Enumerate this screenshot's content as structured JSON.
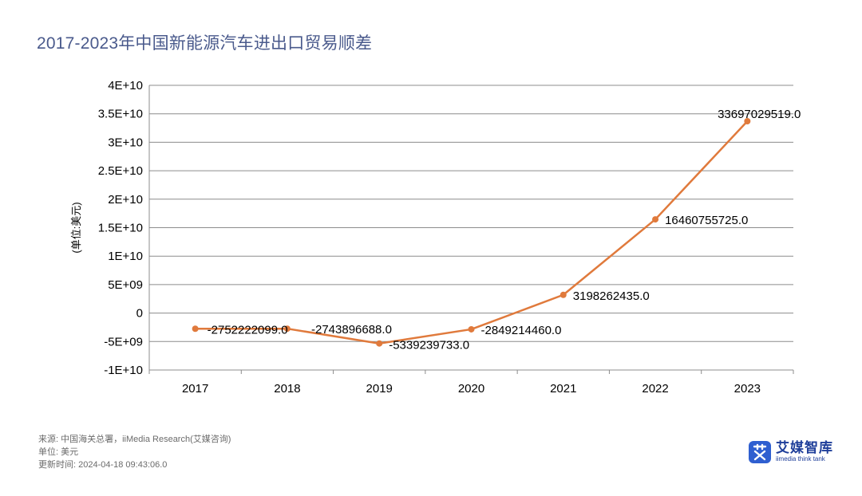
{
  "page": {
    "title": "2017-2023年中国新能源汽车进出口贸易顺差"
  },
  "chart_data": {
    "type": "line",
    "title": "2017-2023年中国新能源汽车进出口贸易顺差",
    "xlabel": "",
    "ylabel": "(单位:美元)",
    "categories": [
      "2017",
      "2018",
      "2019",
      "2020",
      "2021",
      "2022",
      "2023"
    ],
    "series": [
      {
        "name": "贸易顺差",
        "values": [
          -2752222099.0,
          -2743896688.0,
          -5339239733.0,
          -2849214460.0,
          3198262435.0,
          16460755725.0,
          33697029519.0
        ],
        "labels": [
          "-2752222099.0",
          "-2743896688.0",
          "-5339239733.0",
          "-2849214460.0",
          "3198262435.0",
          "16460755725.0",
          "33697029519.0"
        ],
        "color": "#e07a3c"
      }
    ],
    "ylim": [
      -10000000000,
      40000000000
    ],
    "yticks": [
      {
        "value": 40000000000,
        "label": "4E+10"
      },
      {
        "value": 35000000000,
        "label": "3.5E+10"
      },
      {
        "value": 30000000000,
        "label": "3E+10"
      },
      {
        "value": 25000000000,
        "label": "2.5E+10"
      },
      {
        "value": 20000000000,
        "label": "2E+10"
      },
      {
        "value": 15000000000,
        "label": "1.5E+10"
      },
      {
        "value": 10000000000,
        "label": "1E+10"
      },
      {
        "value": 5000000000,
        "label": "5E+09"
      },
      {
        "value": 0,
        "label": "0"
      },
      {
        "value": -5000000000,
        "label": "-5E+09"
      },
      {
        "value": -10000000000,
        "label": "-1E+10"
      }
    ],
    "grid": true,
    "legend": "none",
    "gridColor": "#8c8c8c"
  },
  "footer": {
    "source": "来源: 中国海关总署，iiMedia Research(艾媒咨询)",
    "unit": "单位: 美元",
    "updated": "更新时间: 2024-04-18 09:43:06.0"
  },
  "brand": {
    "name": "艾媒智库",
    "subtitle": "iimedia think tank",
    "logo_glyph": "艾",
    "color": "#2f5fd0"
  }
}
